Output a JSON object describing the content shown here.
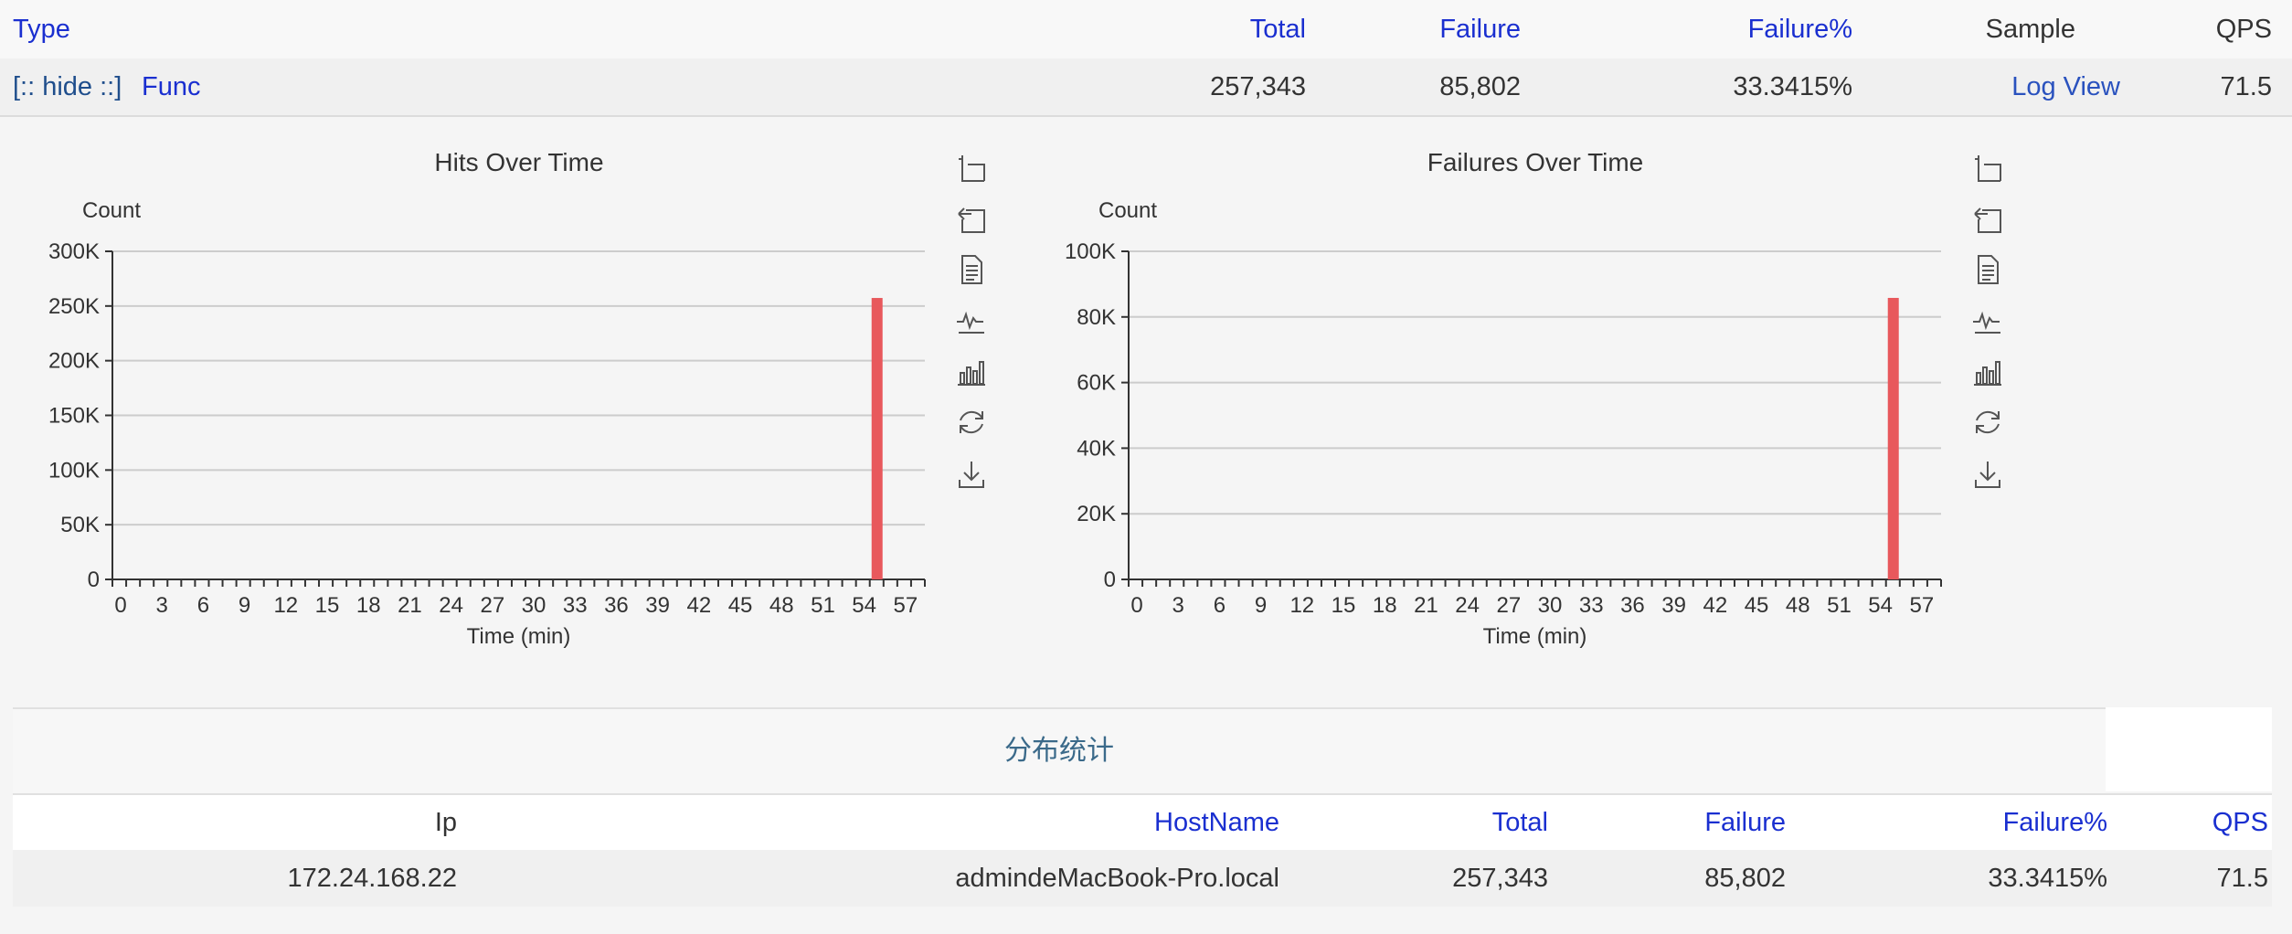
{
  "main_table": {
    "headers": {
      "type": "Type",
      "total": "Total",
      "failure": "Failure",
      "failure_pct": "Failure%",
      "sample": "Sample",
      "qps": "QPS"
    },
    "row": {
      "toggle": "[:: hide ::]",
      "type": "Func",
      "total": "257,343",
      "failure": "85,802",
      "failure_pct": "33.3415%",
      "sample": "Log View",
      "qps": "71.5"
    }
  },
  "colors": {
    "bar": "#e8585c",
    "header_link": "#1a2fd0",
    "grid": "#cccccc"
  },
  "toolbox_icons": [
    "zoom-icon",
    "zoom-reset-icon",
    "data-view-icon",
    "line-chart-icon",
    "bar-chart-icon",
    "restore-icon",
    "save-image-icon"
  ],
  "chart_data": [
    {
      "type": "bar",
      "title": "Hits Over Time",
      "ylabel": "Count",
      "xlabel": "Time (min)",
      "ylim": [
        0,
        300000
      ],
      "y_ticks": [
        "0",
        "50K",
        "100K",
        "150K",
        "200K",
        "250K",
        "300K"
      ],
      "y_tick_values": [
        0,
        50000,
        100000,
        150000,
        200000,
        250000,
        300000
      ],
      "x_tick_labels": [
        "0",
        "3",
        "6",
        "9",
        "12",
        "15",
        "18",
        "21",
        "24",
        "27",
        "30",
        "33",
        "36",
        "39",
        "42",
        "45",
        "48",
        "51",
        "54",
        "57"
      ],
      "x_range": [
        0,
        59
      ],
      "bars": [
        {
          "x": 55,
          "value": 257343
        }
      ],
      "grid": true
    },
    {
      "type": "bar",
      "title": "Failures Over Time",
      "ylabel": "Count",
      "xlabel": "Time (min)",
      "ylim": [
        0,
        100000
      ],
      "y_ticks": [
        "0",
        "20K",
        "40K",
        "60K",
        "80K",
        "100K"
      ],
      "y_tick_values": [
        0,
        20000,
        40000,
        60000,
        80000,
        100000
      ],
      "x_tick_labels": [
        "0",
        "3",
        "6",
        "9",
        "12",
        "15",
        "18",
        "21",
        "24",
        "27",
        "30",
        "33",
        "36",
        "39",
        "42",
        "45",
        "48",
        "51",
        "54",
        "57"
      ],
      "x_range": [
        0,
        59
      ],
      "bars": [
        {
          "x": 55,
          "value": 85802
        }
      ],
      "grid": true
    }
  ],
  "distribution": {
    "title": "分布统计",
    "headers": {
      "ip": "Ip",
      "hostname": "HostName",
      "total": "Total",
      "failure": "Failure",
      "failure_pct": "Failure%",
      "qps": "QPS"
    },
    "row": {
      "ip": "172.24.168.22",
      "hostname": "admindeMacBook-Pro.local",
      "total": "257,343",
      "failure": "85,802",
      "failure_pct": "33.3415%",
      "qps": "71.5"
    }
  }
}
